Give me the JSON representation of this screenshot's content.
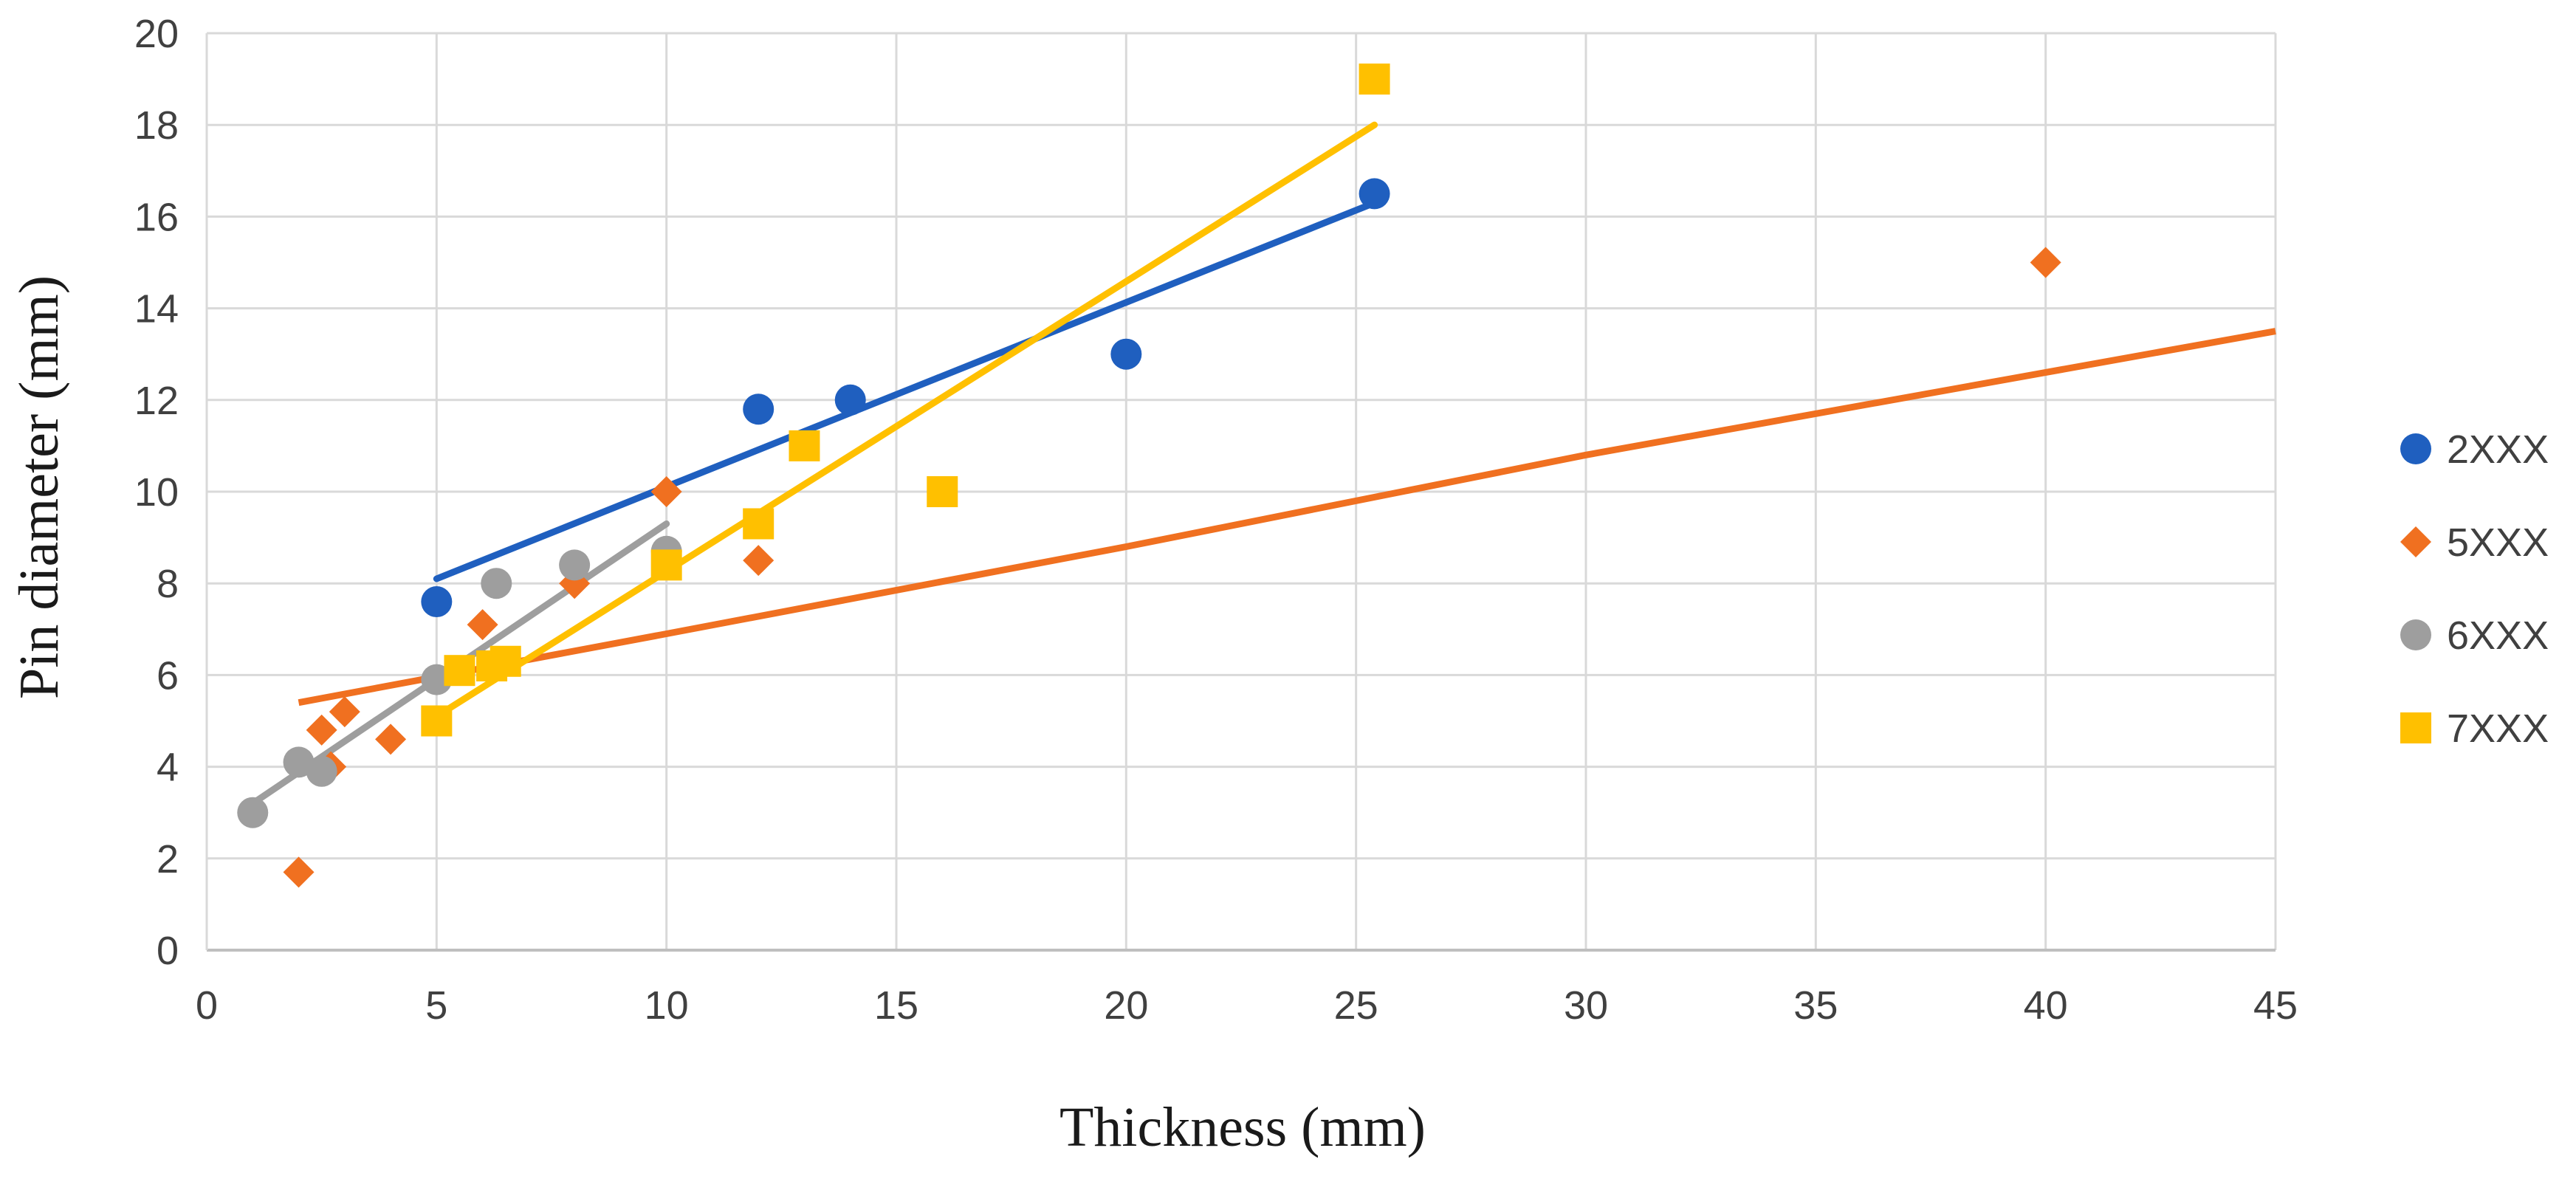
{
  "chart_data": {
    "type": "scatter",
    "title": "",
    "xlabel": "Thickness (mm)",
    "ylabel": "Pin diameter (mm)",
    "xlim": [
      0,
      45
    ],
    "ylim": [
      0,
      20
    ],
    "xticks": [
      0,
      5,
      10,
      15,
      20,
      25,
      30,
      35,
      40,
      45
    ],
    "yticks": [
      0,
      2,
      4,
      6,
      8,
      10,
      12,
      14,
      16,
      18,
      20
    ],
    "grid": true,
    "legend_position": "right",
    "series": [
      {
        "name": "2XXX",
        "color": "#1f5fbf",
        "marker": "circle",
        "points": [
          [
            5,
            7.6
          ],
          [
            12,
            11.8
          ],
          [
            14,
            12.0
          ],
          [
            20,
            13.0
          ],
          [
            25.4,
            16.5
          ]
        ],
        "trendline": {
          "type": "linear",
          "x": [
            5,
            25.4
          ],
          "y": [
            8.1,
            16.3
          ]
        }
      },
      {
        "name": "5XXX",
        "color": "#f07020",
        "marker": "diamond",
        "points": [
          [
            2,
            1.7
          ],
          [
            2.5,
            4.8
          ],
          [
            2.7,
            4.0
          ],
          [
            3,
            5.2
          ],
          [
            4,
            4.6
          ],
          [
            6,
            7.1
          ],
          [
            8,
            8.0
          ],
          [
            10,
            10.0
          ],
          [
            12,
            8.5
          ],
          [
            40,
            15.0
          ]
        ],
        "trendline": {
          "type": "curve",
          "x": [
            2,
            10,
            20,
            30,
            45
          ],
          "y": [
            5.4,
            6.9,
            8.8,
            10.8,
            13.5
          ]
        }
      },
      {
        "name": "6XXX",
        "color": "#9e9e9e",
        "marker": "circle",
        "points": [
          [
            1,
            3.0
          ],
          [
            2,
            4.1
          ],
          [
            2.5,
            3.9
          ],
          [
            5,
            5.9
          ],
          [
            6.3,
            8.0
          ],
          [
            8,
            8.4
          ],
          [
            10,
            8.7
          ]
        ],
        "trendline": {
          "type": "linear",
          "x": [
            1,
            10
          ],
          "y": [
            3.2,
            9.3
          ]
        }
      },
      {
        "name": "7XXX",
        "color": "#ffc000",
        "marker": "square",
        "points": [
          [
            5,
            5.0
          ],
          [
            5.5,
            6.1
          ],
          [
            6.2,
            6.2
          ],
          [
            6.5,
            6.3
          ],
          [
            10,
            8.4
          ],
          [
            12,
            9.3
          ],
          [
            13,
            11.0
          ],
          [
            16,
            10.0
          ],
          [
            25.4,
            19.0
          ]
        ],
        "trendline": {
          "type": "linear",
          "x": [
            5,
            25.4
          ],
          "y": [
            5.1,
            18.0
          ]
        }
      }
    ]
  }
}
